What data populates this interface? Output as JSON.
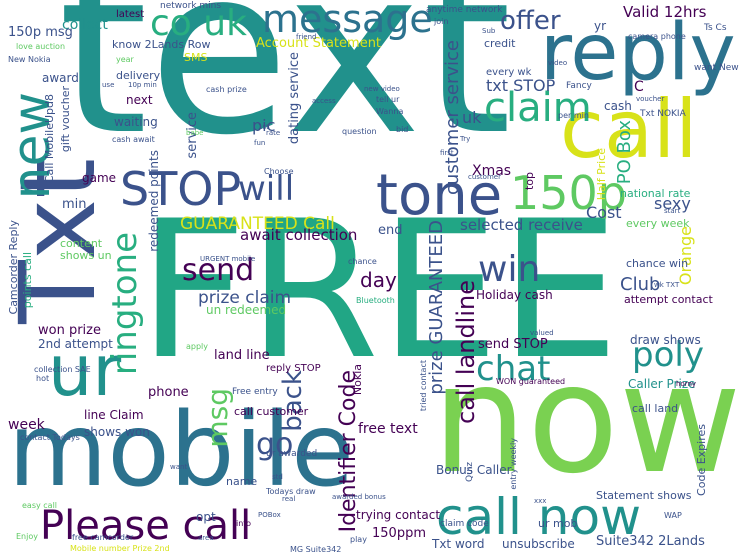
{
  "palette": {
    "dark_purple": "#440154",
    "indigo": "#3b528b",
    "blue_teal": "#2c728e",
    "teal": "#21918c",
    "green_teal": "#28ae80",
    "green": "#5ec962",
    "lime": "#addc30",
    "yellow": "#d8e219"
  },
  "words": {
    "text": "text",
    "free": "FREE",
    "now_big": "now",
    "mobile": "mobile",
    "txt": "Txt",
    "reply": "reply",
    "call_big": "call",
    "new": "new",
    "ur": "ur",
    "co_uk": "co uk",
    "message": "message",
    "stop": "STOP",
    "tone": "tone",
    "150p": "150p",
    "will": "will",
    "please_call": "Please call",
    "call_now": "call now",
    "claim": "claim",
    "offer": "offer",
    "valid_12hrs": "Valid 12hrs",
    "win": "win",
    "chat": "chat",
    "poly": "poly",
    "send": "send",
    "ringtone": "ringtone",
    "msg": "msg",
    "go": "go",
    "back": "back",
    "guaranteed_call": "GUARANTEED Call",
    "customer_service": "customer service",
    "prize_guaranteed": "prize GUARANTEED",
    "call_landline": "call landline",
    "identifier_code": "Identifier Code",
    "club": "Club",
    "cost": "Cost",
    "po_box": "PO Box",
    "uk": "uk",
    "txt_stop": "txt STOP",
    "day": "day",
    "pic": "pic",
    "orange": "Orange",
    "sexy": "sexy",
    "xmas": "Xmas",
    "prize_claim": "prize claim",
    "await_collection": "await collection",
    "selected_receive": "selected receive",
    "collect": "collect",
    "150p_msg": "150p msg",
    "latest": "latest",
    "network_mins": "network mins",
    "anytime_network": "anytime network",
    "account_statement": "Account Statement",
    "know_2lands_row": "know 2Lands Row",
    "sms": "SMS",
    "delivery": "delivery",
    "award": "award",
    "next": "next",
    "waiting": "waiting",
    "game": "game",
    "min": "min",
    "content": "content",
    "shows_un": "shows un",
    "won_prize": "won prize",
    "2nd_attempt": "2nd attempt",
    "land_line": "land line",
    "phone": "phone",
    "week": "week",
    "line_claim": "line Claim",
    "shows_won": "shows won",
    "opt": "opt",
    "name": "name",
    "free_text": "free text",
    "send_stop": "send STOP",
    "holiday_cash": "Holiday cash",
    "chance_win": "chance win",
    "attempt_contact": "attempt contact",
    "draw_shows": "draw shows",
    "caller_prize": "Caller Prize",
    "trying_contact": "trying contact",
    "bonus_caller": "Bonus Caller",
    "statement_shows": "Statement shows",
    "txt_word": "Txt word",
    "unsubscribe": "unsubscribe",
    "suite342_2lands": "Suite342 2Lands",
    "ur_mob": "ur mob",
    "150ppm": "150ppm",
    "call_customer": "call customer",
    "un_redeemed": "un redeemed",
    "end": "end",
    "every_week": "every week",
    "national_rate": "national rate",
    "half_price": "Half Price",
    "cash": "cash",
    "every_wk": "every wk",
    "c": "C",
    "yr": "yr",
    "credit": "credit",
    "fancy": "Fancy",
    "txt_nokia": "Txt NOKIA",
    "call_land": "call land",
    "code_expires": "Code Expires",
    "dating_service": "dating service",
    "service": "service",
    "redeemed_points": "redeemed points",
    "gift_voucher": "gift voucher",
    "call_mobileupd8": "Call MobileUpd8",
    "camcorder_reply": "Camcorder Reply",
    "points_call": "points call",
    "nokia": "Nokia",
    "reply_stop": "reply STOP",
    "top": "top",
    "ts_cs": "Ts Cs",
    "want_new": "want New",
    "camera_phone": "camera phone",
    "new_nokia": "New Nokia",
    "love_auction": "love auction",
    "cash_prize": "cash prize",
    "cash_await": "cash await",
    "urgent_mobile": "URGENT mobile",
    "bt_national": "BT national",
    "bluetooth": "Bluetooth",
    "chance": "chance",
    "free_entry": "Free entry",
    "ur_awarded": "ur awarded",
    "todays_draw": "Todays draw",
    "collection_sae": "collection SAE",
    "hot": "hot",
    "apply": "apply",
    "contact_todays": "contact Todays",
    "easy_call": "easy call",
    "enjoy": "Enjoy",
    "free_camcorder": "free camcorder",
    "mobile_number_prize_2nd": "Mobile number Prize 2nd",
    "mg_suite342": "MG Suite342",
    "area": "area",
    "pobox": "POBox",
    "info": "info",
    "play": "play",
    "claim_code": "claim code",
    "quiz": "Quiz",
    "entry_weekly": "entry weekly",
    "tried_contact": "tried contact",
    "won_guaranteed": "WON guaranteed",
    "valued": "valued",
    "horny": "horny",
    "wap": "WAP",
    "friend": "friend",
    "join": "join",
    "sub": "Sub",
    "year": "year",
    "use": "use",
    "10p_min": "10p min",
    "babe": "babe",
    "fun": "fun",
    "1st": "1st",
    "rate": "rate",
    "access": "access",
    "new_video": "new video",
    "tell_ur": "tell ur",
    "wanna": "Wanna",
    "bid": "bid",
    "girl": "girl",
    "video": "video",
    "question": "question",
    "first": "first",
    "try": "Try",
    "per_min": "per min",
    "customer": "customer",
    "month": "month",
    "won": "won",
    "find": "find",
    "line_rental": "line rental",
    "wk_txt": "wk TXT",
    "voucher": "voucher",
    "start": "start",
    "sae": "sae",
    "xxx": "xxx",
    "std": "std",
    "txts": "txts",
    "choose": "Choose",
    "real": "real",
    "want": "want",
    "1000_cash": "1000 cash",
    "awarded_bonus": "awarded bonus",
    "entry": "entry",
    "dollar": "Dollar"
  }
}
